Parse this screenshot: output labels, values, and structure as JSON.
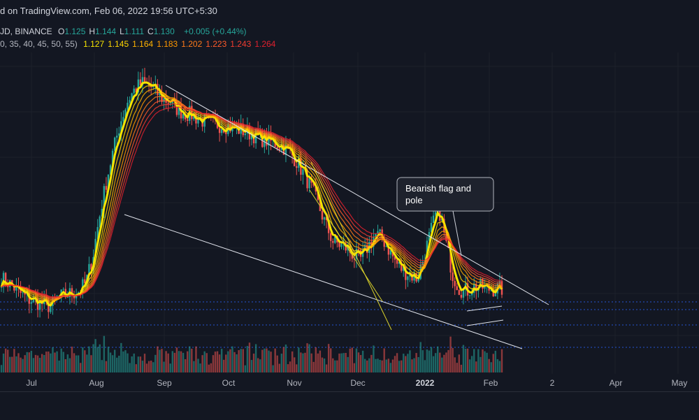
{
  "header": {
    "published": "d on TradingView.com, Feb 06, 2022 19:56 UTC+5:30",
    "symbol": "JD, BINANCE",
    "ohlc": [
      {
        "k": "O",
        "v": "1.125"
      },
      {
        "k": "H",
        "v": "1.144"
      },
      {
        "k": "L",
        "v": "1.111"
      },
      {
        "k": "C",
        "v": "1.130"
      }
    ],
    "change": "+0.005 (+0.44%)",
    "ribbon_params": "0, 35, 40, 45, 50, 55)",
    "ribbon_values": [
      {
        "v": "1.127",
        "color": "#f5e400"
      },
      {
        "v": "1.145",
        "color": "#ffd600"
      },
      {
        "v": "1.164",
        "color": "#ffb300"
      },
      {
        "v": "1.183",
        "color": "#ff9800"
      },
      {
        "v": "1.202",
        "color": "#ff7a1a"
      },
      {
        "v": "1.223",
        "color": "#ff5a2a"
      },
      {
        "v": "1.243",
        "color": "#f23c30"
      },
      {
        "v": "1.264",
        "color": "#e0202e"
      }
    ]
  },
  "annotation": {
    "text_line1": "Bearish flag and",
    "text_line2": "pole"
  },
  "chart_data": {
    "type": "line",
    "subtype": "candlestick",
    "x_tick_labels": [
      "Jul",
      "Aug",
      "Sep",
      "Oct",
      "Nov",
      "Dec",
      "2022",
      "Feb",
      "2",
      "Apr",
      "May"
    ],
    "colors": {
      "up": "#26a69a",
      "down": "#ef5350",
      "background": "#131722",
      "grid": "#1e222d"
    },
    "close_series": [
      1.18,
      1.16,
      1.13,
      1.1,
      1.08,
      1.07,
      1.06,
      1.05,
      1.09,
      1.1,
      1.11,
      1.12,
      1.16,
      1.3,
      1.55,
      1.8,
      2.05,
      2.3,
      2.5,
      2.62,
      2.68,
      2.65,
      2.58,
      2.5,
      2.48,
      2.4,
      2.36,
      2.35,
      2.3,
      2.28,
      2.26,
      2.25,
      2.24,
      2.22,
      2.2,
      2.18,
      2.15,
      2.12,
      2.1,
      2.08,
      2.05,
      2.0,
      1.92,
      1.82,
      1.72,
      1.6,
      1.48,
      1.38,
      1.36,
      1.34,
      1.3,
      1.28,
      1.35,
      1.42,
      1.4,
      1.33,
      1.26,
      1.22,
      1.2,
      1.18,
      1.3,
      1.45,
      1.6,
      1.38,
      1.2,
      1.13,
      1.12,
      1.14,
      1.14,
      1.13,
      1.13,
      1.13
    ]
  }
}
